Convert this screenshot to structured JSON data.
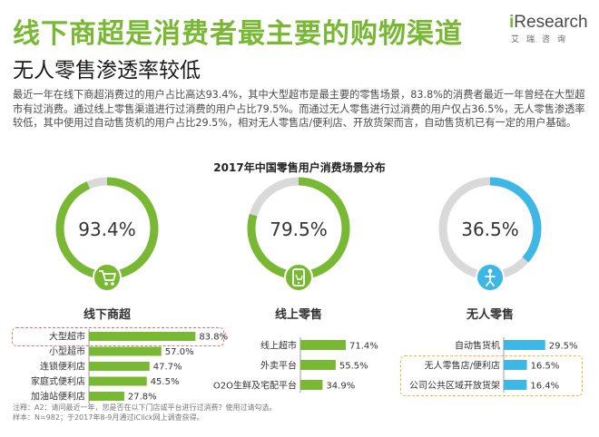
{
  "header": {
    "title": "线下商超是消费者最主要的购物渠道",
    "subtitle": "无人零售渗透率较低",
    "paragraph": "最近一年在线下商超消费过的用户占比高达93.4%，其中大型超市是最主要的零售场景，83.8%的消费者最近一年曾经在大型超市有过消费。通过线上零售渠道进行过消费的用户占比79.5%。而通过无人零售进行过消费的用户仅占36.5%，无人零售渗透率较低，其中使用过自动售货机的用户占比29.5%，相对无人零售店/便利店、开放货架而言，自动售货机已有一定的用户基础。"
  },
  "logo": {
    "prefix": "i",
    "name": "Research",
    "cn": "艾瑞咨询"
  },
  "colors": {
    "green": "#78b833",
    "blue": "#3cb7e6",
    "grey_ring": "#d9d9d9",
    "highlight_red": "#e8726a",
    "highlight_yellow": "#f5b731"
  },
  "chart_data": {
    "type": "bar",
    "title": "2017年中国零售用户消费场景分布",
    "rings": [
      {
        "value": 93.4,
        "label": "93.4%",
        "category": "线下商超",
        "icon": "shopping-cart-icon",
        "color": "#78b833"
      },
      {
        "value": 79.5,
        "label": "79.5%",
        "category": "线上零售",
        "icon": "mobile-cart-icon",
        "color": "#78b833"
      },
      {
        "value": 36.5,
        "label": "36.5%",
        "category": "无人零售",
        "icon": "vending-person-icon",
        "color": "#3cb7e6"
      }
    ],
    "groups": [
      {
        "name": "线下商超",
        "color": "#78b833",
        "xlim": [
          0,
          100
        ],
        "items": [
          {
            "label": "大型超市",
            "value": 83.8,
            "text": "83.8%"
          },
          {
            "label": "小型超市",
            "value": 57.0,
            "text": "57.0%"
          },
          {
            "label": "连锁便利店",
            "value": 47.7,
            "text": "47.7%"
          },
          {
            "label": "家庭式便利店",
            "value": 45.5,
            "text": "45.5%"
          },
          {
            "label": "加油站便利店",
            "value": 27.8,
            "text": "27.8%"
          }
        ]
      },
      {
        "name": "线上零售",
        "color": "#78b833",
        "xlim": [
          0,
          100
        ],
        "items": [
          {
            "label": "线上超市",
            "value": 71.4,
            "text": "71.4%"
          },
          {
            "label": "外卖平台",
            "value": 55.5,
            "text": "55.5%"
          },
          {
            "label": "O2O生鲜及宅配平台",
            "value": 34.9,
            "text": "34.9%"
          }
        ]
      },
      {
        "name": "无人零售",
        "color": "#3cb7e6",
        "xlim": [
          0,
          100
        ],
        "items": [
          {
            "label": "自动售货机",
            "value": 29.5,
            "text": "29.5%"
          },
          {
            "label": "无人零售店/便利店",
            "value": 16.5,
            "text": "16.5%"
          },
          {
            "label": "公司公共区域开放货架",
            "value": 16.4,
            "text": "16.4%"
          }
        ]
      }
    ]
  },
  "footnote": {
    "line1": "注释：A2：请问最近一年，您是否在以下门店或平台进行过消费？使用过请勾选。",
    "line2": "样本：N=982；于2017年8-9月通过iClick网上调查获得。"
  }
}
